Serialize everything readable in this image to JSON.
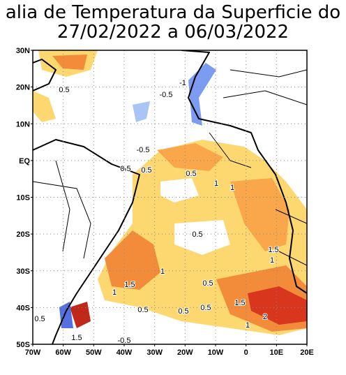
{
  "header": {
    "title_line1": "alia de Temperatura da Superficie do",
    "title_line2": "27/02/2022 a 06/03/2022"
  },
  "map": {
    "lat_labels": [
      "30N",
      "20N",
      "10N",
      "EQ",
      "10S",
      "20S",
      "30S",
      "40S",
      "50S"
    ],
    "lon_labels": [
      "70W",
      "60W",
      "50W",
      "40W",
      "30W",
      "20W",
      "10W",
      "0",
      "10E",
      "20E"
    ],
    "contour_labels": [
      "0.5",
      "-0.5",
      "-1",
      "-0.5",
      "0.5",
      "0.5",
      "0.5",
      "1",
      "1",
      "0.5",
      "1.5",
      "1",
      "1",
      "1.5",
      "0.5",
      "1",
      "0.5",
      "0.5",
      "0.5",
      "1.5",
      "2",
      "1",
      "0.5",
      "1.5",
      "-0.5"
    ]
  }
}
